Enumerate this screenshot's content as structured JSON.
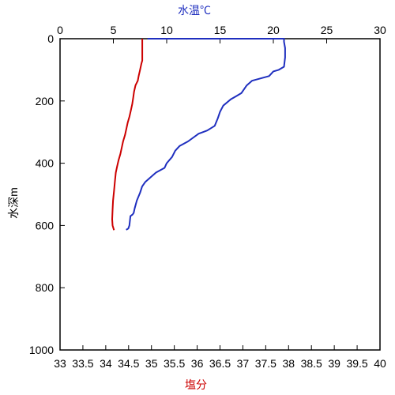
{
  "chart_data": {
    "type": "line",
    "top_axis": {
      "label": "水温℃",
      "range": [
        0,
        30
      ],
      "ticks": [
        0,
        5,
        10,
        15,
        20,
        25,
        30
      ],
      "tick_labels": [
        "0",
        "5",
        "10",
        "15",
        "20",
        "25",
        "30"
      ],
      "color": "#1f2fbf"
    },
    "bottom_axis": {
      "label": "塩分",
      "range": [
        33,
        40
      ],
      "ticks": [
        33,
        33.5,
        34,
        34.5,
        35,
        35.5,
        36,
        36.5,
        37,
        37.5,
        38,
        38.5,
        39,
        39.5,
        40
      ],
      "tick_labels": [
        "33",
        "33.5",
        "34",
        "34.5",
        "35",
        "35.5",
        "36",
        "36.5",
        "37",
        "37.5",
        "38",
        "38.5",
        "39",
        "39.5",
        "40"
      ],
      "color": "#cc0000"
    },
    "y_axis": {
      "label": "水深m",
      "range": [
        0,
        1000
      ],
      "inverted": true,
      "ticks": [
        0,
        200,
        400,
        600,
        800,
        1000
      ],
      "tick_labels": [
        "0",
        "200",
        "400",
        "600",
        "800",
        "1000"
      ]
    },
    "grid": false,
    "series": [
      {
        "axis": "top",
        "color": "#1f2fbf",
        "points": [
          [
            8.2,
            0
          ],
          [
            21.0,
            0
          ],
          [
            21.0,
            10
          ],
          [
            21.1,
            30
          ],
          [
            21.1,
            60
          ],
          [
            21.0,
            90
          ],
          [
            20.5,
            100
          ],
          [
            20.0,
            105
          ],
          [
            19.6,
            120
          ],
          [
            18.0,
            135
          ],
          [
            17.5,
            150
          ],
          [
            17.0,
            175
          ],
          [
            16.5,
            185
          ],
          [
            16.0,
            195
          ],
          [
            15.3,
            215
          ],
          [
            15.0,
            235
          ],
          [
            14.8,
            255
          ],
          [
            14.5,
            280
          ],
          [
            13.8,
            295
          ],
          [
            13.0,
            305
          ],
          [
            12.0,
            330
          ],
          [
            11.2,
            345
          ],
          [
            10.8,
            360
          ],
          [
            10.5,
            380
          ],
          [
            10.0,
            400
          ],
          [
            9.8,
            415
          ],
          [
            9.0,
            430
          ],
          [
            8.5,
            445
          ],
          [
            8.0,
            460
          ],
          [
            7.7,
            475
          ],
          [
            7.5,
            495
          ],
          [
            7.2,
            520
          ],
          [
            7.0,
            545
          ],
          [
            6.9,
            560
          ],
          [
            6.8,
            565
          ],
          [
            6.6,
            570
          ],
          [
            6.5,
            600
          ],
          [
            6.4,
            610
          ],
          [
            6.2,
            614
          ]
        ]
      },
      {
        "axis": "bottom",
        "color": "#cc0000",
        "points": [
          [
            34.8,
            0
          ],
          [
            34.8,
            20
          ],
          [
            34.8,
            50
          ],
          [
            34.8,
            70
          ],
          [
            34.78,
            80
          ],
          [
            34.75,
            100
          ],
          [
            34.72,
            120
          ],
          [
            34.7,
            135
          ],
          [
            34.65,
            150
          ],
          [
            34.62,
            170
          ],
          [
            34.6,
            190
          ],
          [
            34.58,
            210
          ],
          [
            34.55,
            230
          ],
          [
            34.52,
            250
          ],
          [
            34.48,
            270
          ],
          [
            34.45,
            290
          ],
          [
            34.42,
            310
          ],
          [
            34.38,
            330
          ],
          [
            34.35,
            350
          ],
          [
            34.32,
            370
          ],
          [
            34.28,
            390
          ],
          [
            34.25,
            410
          ],
          [
            34.22,
            430
          ],
          [
            34.2,
            460
          ],
          [
            34.18,
            490
          ],
          [
            34.16,
            520
          ],
          [
            34.15,
            550
          ],
          [
            34.14,
            580
          ],
          [
            34.15,
            600
          ],
          [
            34.18,
            615
          ]
        ]
      }
    ]
  }
}
